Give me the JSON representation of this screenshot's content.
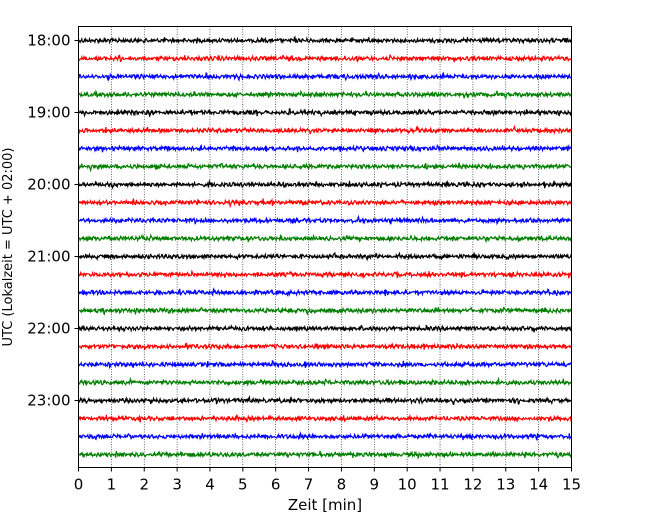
{
  "chart_data": {
    "type": "line",
    "title": "",
    "xlabel": "Zeit  [min]",
    "ylabel": "UTC (Lokalzeit = UTC + 02:00)",
    "xlim": [
      0,
      15
    ],
    "x_ticks": [
      "0",
      "1",
      "2",
      "3",
      "4",
      "5",
      "6",
      "7",
      "8",
      "9",
      "10",
      "11",
      "12",
      "13",
      "14",
      "15"
    ],
    "y_tick_labels": [
      "18:00",
      "19:00",
      "20:00",
      "21:00",
      "22:00",
      "23:00"
    ],
    "grid": "vertical dotted",
    "trace_start": "18:00",
    "trace_interval_min": 15,
    "trace_count": 24,
    "trace_colors": [
      "#000000",
      "#ff0000",
      "#0000ff",
      "#007f00"
    ],
    "description": ""
  }
}
